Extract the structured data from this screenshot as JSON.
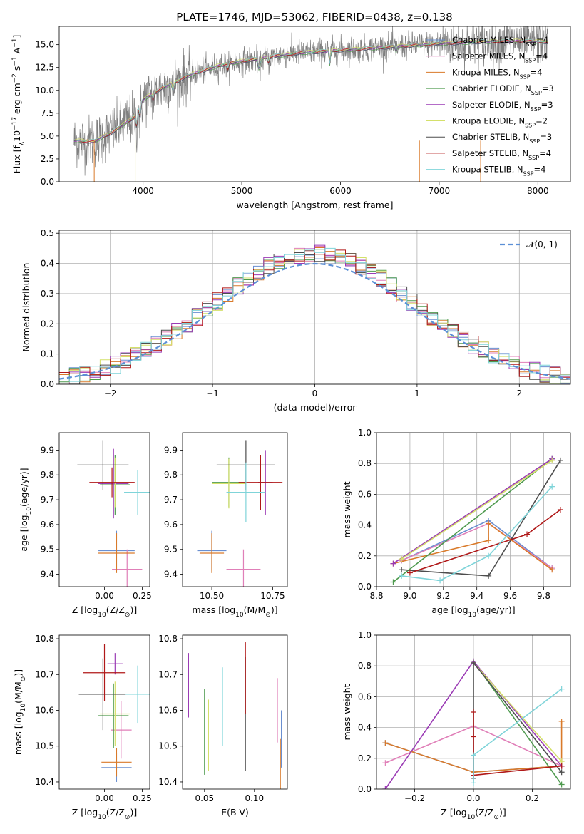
{
  "figure_title": "PLATE=1746, MJD=53062, FIBERID=0438, z=0.138",
  "colors": {
    "Chabrier MILES": "#6a8fd0",
    "Salpeter MILES": "#e07fb8",
    "Kroupa MILES": "#d97a2a",
    "Chabrier ELODIE": "#4e9a4e",
    "Salpeter ELODIE": "#9b3bb5",
    "Kroupa ELODIE": "#d4e06a",
    "Chabrier STELIB": "#4d4d4d",
    "Salpeter STELIB": "#b01818",
    "Kroupa STELIB": "#7fd4d9",
    "normal": "#5b8fd6",
    "data": "#808080"
  },
  "legend": [
    {
      "name": "Chabrier MILES",
      "nssp": "4"
    },
    {
      "name": "Salpeter MILES",
      "nssp": "4"
    },
    {
      "name": "Kroupa MILES",
      "nssp": "4"
    },
    {
      "name": "Chabrier ELODIE",
      "nssp": "3"
    },
    {
      "name": "Salpeter ELODIE",
      "nssp": "3"
    },
    {
      "name": "Kroupa ELODIE",
      "nssp": "2"
    },
    {
      "name": "Chabrier STELIB",
      "nssp": "3"
    },
    {
      "name": "Salpeter STELIB",
      "nssp": "4"
    },
    {
      "name": "Kroupa STELIB",
      "nssp": "4"
    }
  ],
  "chart_data": [
    {
      "id": "spectrum",
      "type": "line",
      "xlabel": "wavelength [Angstrom, rest frame]",
      "ylabel": "Flux [f_λ 10^-17 erg cm^-2 s^-1 A^-1]",
      "xlim": [
        3150,
        8330
      ],
      "ylim": [
        0,
        17
      ],
      "xticks": [
        4000,
        5000,
        6000,
        7000,
        8000
      ],
      "yticks": [
        0.0,
        2.5,
        5.0,
        7.5,
        10.0,
        12.5,
        15.0
      ],
      "continuum_x": [
        3300,
        3500,
        3700,
        3900,
        4000,
        4200,
        4500,
        4800,
        5000,
        5300,
        5600,
        6000,
        6300,
        6700,
        7000,
        7400,
        7800,
        8100
      ],
      "continuum_y": [
        4.5,
        4.4,
        5.5,
        7.0,
        9.0,
        10.3,
        11.8,
        12.8,
        13.2,
        13.7,
        14.1,
        14.4,
        14.6,
        14.9,
        15.1,
        15.3,
        15.4,
        15.3
      ],
      "data_range": [
        3300,
        8100
      ],
      "models_range": [
        3300,
        8100
      ]
    },
    {
      "id": "residuals",
      "type": "histogram",
      "xlabel": "(data-model)/error",
      "ylabel": "Normed distribution",
      "xlim": [
        -2.5,
        2.5
      ],
      "ylim": [
        0,
        0.51
      ],
      "xticks": [
        -2,
        -1,
        0,
        1,
        2
      ],
      "yticks": [
        0.0,
        0.1,
        0.2,
        0.3,
        0.4,
        0.5
      ],
      "grid": true,
      "legend": "𝒩(0, 1)",
      "legend_position": "top-right",
      "bin_width": 0.1
    },
    {
      "id": "age_vs_Z",
      "type": "errorbar",
      "xlabel": "Z [log10(Z/Z⊙)]",
      "ylabel": "age [log10(age/yr)]",
      "xlim": [
        -0.3,
        0.3
      ],
      "ylim": [
        9.35,
        9.97
      ],
      "xticks": [
        0.0,
        0.25
      ],
      "yticks": [
        9.4,
        9.5,
        9.6,
        9.7,
        9.8,
        9.9
      ],
      "points": [
        {
          "model": "Chabrier MILES",
          "x": 0.08,
          "y": 9.495,
          "xerr": 0.12,
          "yerr": 0.08
        },
        {
          "model": "Salpeter MILES",
          "x": 0.15,
          "y": 9.42,
          "xerr": 0.1,
          "yerr": 0.08
        },
        {
          "model": "Kroupa MILES",
          "x": 0.08,
          "y": 9.485,
          "xerr": 0.12,
          "yerr": 0.08
        },
        {
          "model": "Chabrier ELODIE",
          "x": 0.07,
          "y": 9.76,
          "xerr": 0.1,
          "yerr": 0.12
        },
        {
          "model": "Salpeter ELODIE",
          "x": 0.06,
          "y": 9.765,
          "xerr": 0.1,
          "yerr": 0.14
        },
        {
          "model": "Kroupa ELODIE",
          "x": 0.07,
          "y": 9.77,
          "xerr": 0.1,
          "yerr": 0.1
        },
        {
          "model": "Chabrier STELIB",
          "x": -0.01,
          "y": 9.84,
          "xerr": 0.17,
          "yerr": 0.1
        },
        {
          "model": "Salpeter STELIB",
          "x": 0.05,
          "y": 9.77,
          "xerr": 0.15,
          "yerr": 0.06
        },
        {
          "model": "Kroupa STELIB",
          "x": 0.22,
          "y": 9.73,
          "xerr": 0.09,
          "yerr": 0.09
        }
      ]
    },
    {
      "id": "age_vs_mass",
      "type": "errorbar",
      "xlabel": "mass [log10(M/M⊙)]",
      "xlim": [
        10.38,
        10.81
      ],
      "ylim": [
        9.35,
        9.97
      ],
      "xticks": [
        10.5,
        10.75
      ],
      "yticks": [
        9.4,
        9.5,
        9.6,
        9.7,
        9.8,
        9.9
      ],
      "points": [
        {
          "model": "Chabrier MILES",
          "x": 10.5,
          "y": 9.495,
          "xerr": 0.06,
          "yerr": 0.08
        },
        {
          "model": "Salpeter MILES",
          "x": 10.63,
          "y": 9.42,
          "xerr": 0.07,
          "yerr": 0.08
        },
        {
          "model": "Kroupa MILES",
          "x": 10.5,
          "y": 9.485,
          "xerr": 0.05,
          "yerr": 0.08
        },
        {
          "model": "Chabrier ELODIE",
          "x": 10.57,
          "y": 9.77,
          "xerr": 0.07,
          "yerr": 0.1
        },
        {
          "model": "Salpeter ELODIE",
          "x": 10.72,
          "y": 9.77,
          "xerr": 0.03,
          "yerr": 0.13
        },
        {
          "model": "Kroupa ELODIE",
          "x": 10.57,
          "y": 9.765,
          "xerr": 0.07,
          "yerr": 0.1
        },
        {
          "model": "Chabrier STELIB",
          "x": 10.64,
          "y": 9.84,
          "xerr": 0.12,
          "yerr": 0.1
        },
        {
          "model": "Salpeter STELIB",
          "x": 10.7,
          "y": 9.77,
          "xerr": 0.09,
          "yerr": 0.11
        },
        {
          "model": "Kroupa STELIB",
          "x": 10.64,
          "y": 9.73,
          "xerr": 0.08,
          "yerr": 0.12
        }
      ]
    },
    {
      "id": "weight_vs_age",
      "type": "line",
      "xlabel": "age [log10(age/yr)]",
      "ylabel": "mass weight",
      "xlim": [
        8.8,
        9.96
      ],
      "ylim": [
        0,
        1
      ],
      "xticks": [
        8.8,
        9.0,
        9.2,
        9.4,
        9.6,
        9.8
      ],
      "yticks": [
        0.0,
        0.2,
        0.4,
        0.6,
        0.8,
        1.0
      ],
      "grid": true,
      "series": [
        {
          "model": "Chabrier MILES",
          "x": [
            8.95,
            9.47,
            9.85
          ],
          "y": [
            0.17,
            0.43,
            0.12
          ]
        },
        {
          "model": "Salpeter MILES",
          "x": [
            8.95,
            9.47,
            9.85
          ],
          "y": [
            0.17,
            0.41,
            0.12
          ]
        },
        {
          "model": "Kroupa MILES",
          "x": [
            8.9,
            9.47,
            9.47,
            9.85
          ],
          "y": [
            0.15,
            0.3,
            0.41,
            0.11
          ]
        },
        {
          "model": "Chabrier ELODIE",
          "x": [
            8.9,
            9.85
          ],
          "y": [
            0.03,
            0.83
          ]
        },
        {
          "model": "Salpeter ELODIE",
          "x": [
            8.9,
            9.85
          ],
          "y": [
            0.15,
            0.83
          ]
        },
        {
          "model": "Kroupa ELODIE",
          "x": [
            8.95,
            9.85
          ],
          "y": [
            0.18,
            0.82
          ]
        },
        {
          "model": "Chabrier STELIB",
          "x": [
            8.95,
            9.47,
            9.9
          ],
          "y": [
            0.11,
            0.07,
            0.82
          ]
        },
        {
          "model": "Salpeter STELIB",
          "x": [
            9.0,
            9.7,
            9.9
          ],
          "y": [
            0.09,
            0.34,
            0.5
          ]
        },
        {
          "model": "Kroupa STELIB",
          "x": [
            8.95,
            9.18,
            9.47,
            9.85
          ],
          "y": [
            0.07,
            0.04,
            0.2,
            0.65
          ]
        }
      ]
    },
    {
      "id": "mass_vs_Z",
      "type": "errorbar",
      "xlabel": "Z [log10(Z/Z⊙)]",
      "ylabel": "mass [log10(M/M⊙)]",
      "xlim": [
        -0.3,
        0.3
      ],
      "ylim": [
        10.38,
        10.81
      ],
      "xticks": [
        0.0,
        0.25
      ],
      "yticks": [
        10.4,
        10.5,
        10.6,
        10.7,
        10.8
      ],
      "points": [
        {
          "model": "Chabrier MILES",
          "x": 0.08,
          "y": 10.44,
          "xerr": 0.1,
          "yerr": 0.04
        },
        {
          "model": "Salpeter MILES",
          "x": 0.11,
          "y": 10.545,
          "xerr": 0.07,
          "yerr": 0.08
        },
        {
          "model": "Kroupa MILES",
          "x": 0.08,
          "y": 10.455,
          "xerr": 0.1,
          "yerr": 0.04
        },
        {
          "model": "Chabrier ELODIE",
          "x": 0.06,
          "y": 10.585,
          "xerr": 0.1,
          "yerr": 0.09
        },
        {
          "model": "Salpeter ELODIE",
          "x": 0.07,
          "y": 10.73,
          "xerr": 0.05,
          "yerr": 0.03
        },
        {
          "model": "Kroupa ELODIE",
          "x": 0.07,
          "y": 10.59,
          "xerr": 0.1,
          "yerr": 0.09
        },
        {
          "model": "Chabrier STELIB",
          "x": -0.01,
          "y": 10.645,
          "xerr": 0.16,
          "yerr": 0.1
        },
        {
          "model": "Salpeter STELIB",
          "x": 0.0,
          "y": 10.705,
          "xerr": 0.14,
          "yerr": 0.08
        },
        {
          "model": "Kroupa STELIB",
          "x": 0.22,
          "y": 10.645,
          "xerr": 0.08,
          "yerr": 0.08
        }
      ]
    },
    {
      "id": "mass_vs_ebv",
      "type": "errorbar",
      "xlabel": "E(B-V)",
      "xlim": [
        0.028,
        0.133
      ],
      "ylim": [
        10.38,
        10.81
      ],
      "xticks": [
        0.05,
        0.1
      ],
      "yticks": [
        10.4,
        10.5,
        10.6,
        10.7,
        10.8
      ],
      "points": [
        {
          "model": "Chabrier MILES",
          "x": 0.127,
          "y": 10.52,
          "xerr": 0,
          "yerr": 0.08
        },
        {
          "model": "Salpeter MILES",
          "x": 0.123,
          "y": 10.6,
          "xerr": 0,
          "yerr": 0.09
        },
        {
          "model": "Kroupa MILES",
          "x": 0.126,
          "y": 10.45,
          "xerr": 0,
          "yerr": 0.07
        },
        {
          "model": "Chabrier ELODIE",
          "x": 0.05,
          "y": 10.54,
          "xerr": 0,
          "yerr": 0.12
        },
        {
          "model": "Salpeter ELODIE",
          "x": 0.034,
          "y": 10.67,
          "xerr": 0,
          "yerr": 0.09
        },
        {
          "model": "Kroupa ELODIE",
          "x": 0.054,
          "y": 10.53,
          "xerr": 0,
          "yerr": 0.1
        },
        {
          "model": "Chabrier STELIB",
          "x": 0.091,
          "y": 10.59,
          "xerr": 0,
          "yerr": 0.16
        },
        {
          "model": "Salpeter STELIB",
          "x": 0.091,
          "y": 10.69,
          "xerr": 0,
          "yerr": 0.1
        },
        {
          "model": "Kroupa STELIB",
          "x": 0.068,
          "y": 10.61,
          "xerr": 0,
          "yerr": 0.11
        }
      ]
    },
    {
      "id": "weight_vs_Z",
      "type": "line",
      "xlabel": "Z [log10(Z/Z⊙)]",
      "ylabel": "mass weight",
      "xlim": [
        -0.33,
        0.33
      ],
      "ylim": [
        0,
        1
      ],
      "xticks": [
        -0.2,
        0.0,
        0.2
      ],
      "yticks": [
        0.0,
        0.2,
        0.4,
        0.6,
        0.8,
        1.0
      ],
      "grid": true,
      "series": [
        {
          "model": "Chabrier MILES",
          "x": [
            -0.3,
            0.0,
            0.3
          ],
          "y": [
            0.3,
            0.11,
            0.15
          ]
        },
        {
          "model": "Salpeter MILES",
          "x": [
            -0.3,
            0.0,
            0.3
          ],
          "y": [
            0.17,
            0.41,
            0.15
          ]
        },
        {
          "model": "Kroupa MILES",
          "x": [
            -0.3,
            0.0,
            0.3,
            0.3
          ],
          "y": [
            0.3,
            0.11,
            0.15,
            0.44
          ]
        },
        {
          "model": "Chabrier ELODIE",
          "x": [
            0.0,
            0.3
          ],
          "y": [
            0.83,
            0.03
          ]
        },
        {
          "model": "Salpeter ELODIE",
          "x": [
            -0.3,
            0.0,
            0.3
          ],
          "y": [
            0.0,
            0.83,
            0.15
          ]
        },
        {
          "model": "Kroupa ELODIE",
          "x": [
            0.0,
            0.3
          ],
          "y": [
            0.82,
            0.18
          ]
        },
        {
          "model": "Chabrier STELIB",
          "x": [
            0.0,
            0.0,
            0.3
          ],
          "y": [
            0.07,
            0.82,
            0.11
          ]
        },
        {
          "model": "Salpeter STELIB",
          "x": [
            0.0,
            0.0,
            0.0,
            0.3
          ],
          "y": [
            0.34,
            0.5,
            0.09,
            0.15
          ]
        },
        {
          "model": "Kroupa STELIB",
          "x": [
            0.0,
            0.0,
            0.3
          ],
          "y": [
            0.04,
            0.22,
            0.65
          ]
        }
      ]
    }
  ]
}
